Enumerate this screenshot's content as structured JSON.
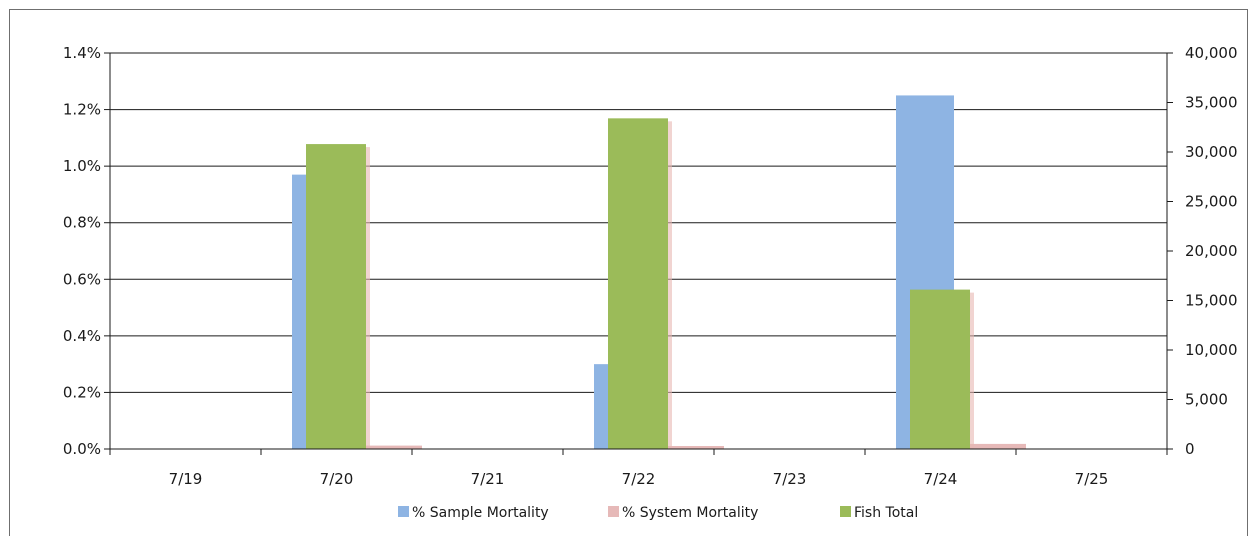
{
  "chart_data": {
    "type": "bar",
    "categories": [
      "7/19",
      "7/20",
      "7/21",
      "7/22",
      "7/23",
      "7/24",
      "7/25"
    ],
    "series": [
      {
        "name": "% Sample Mortality",
        "axis": "left",
        "color": "#8eb4e3",
        "values": [
          0,
          0.0097,
          0,
          0.003,
          0,
          0.0125,
          0
        ]
      },
      {
        "name": "% System Mortality",
        "axis": "left",
        "color": "#e6b9b8",
        "values": [
          0,
          0.00012,
          0,
          8e-05,
          0,
          0.00018,
          0
        ]
      },
      {
        "name": "Fish Total",
        "axis": "right",
        "color": "#9bbb59",
        "values": [
          0,
          30800,
          0,
          33400,
          0,
          16100,
          0
        ]
      }
    ],
    "y_left": {
      "min": 0,
      "max": 0.014,
      "ticks": [
        "0.0%",
        "0.2%",
        "0.4%",
        "0.6%",
        "0.8%",
        "1.0%",
        "1.2%",
        "1.4%"
      ]
    },
    "y_right": {
      "min": 0,
      "max": 40000,
      "ticks": [
        "0",
        "5,000",
        "10,000",
        "15,000",
        "20,000",
        "25,000",
        "30,000",
        "35,000",
        "40,000"
      ]
    },
    "grid": "horizontal",
    "legend_position": "bottom"
  }
}
